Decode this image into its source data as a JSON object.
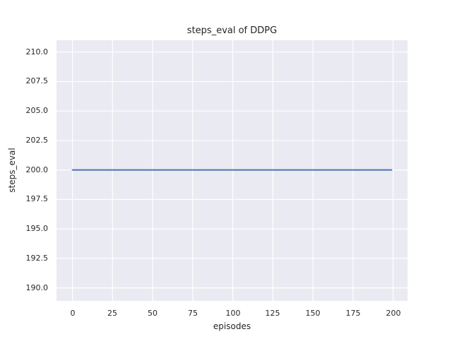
{
  "chart_data": {
    "type": "line",
    "title": "steps_eval of DDPG",
    "xlabel": "episodes",
    "ylabel": "steps_eval",
    "xlim": [
      -9.95,
      208.95
    ],
    "ylim": [
      188.9,
      211.0
    ],
    "xticks": {
      "values": [
        0,
        25,
        50,
        75,
        100,
        125,
        150,
        175,
        200
      ],
      "labels": [
        "0",
        "25",
        "50",
        "75",
        "100",
        "125",
        "150",
        "175",
        "200"
      ]
    },
    "yticks": {
      "values": [
        190.0,
        192.5,
        195.0,
        197.5,
        200.0,
        202.5,
        205.0,
        207.5,
        210.0
      ],
      "labels": [
        "190.0",
        "192.5",
        "195.0",
        "197.5",
        "200.0",
        "202.5",
        "205.0",
        "207.5",
        "210.0"
      ]
    },
    "grid": true,
    "legend": "none",
    "colors": {
      "plot_background": "#eaeaf2",
      "grid_line": "#ffffff",
      "text": "#262626"
    },
    "series": [
      {
        "name": "DDPG",
        "color": "#4c72b0",
        "line_width": 2,
        "x": [
          0,
          199
        ],
        "y": [
          200.0,
          200.0
        ]
      }
    ]
  }
}
